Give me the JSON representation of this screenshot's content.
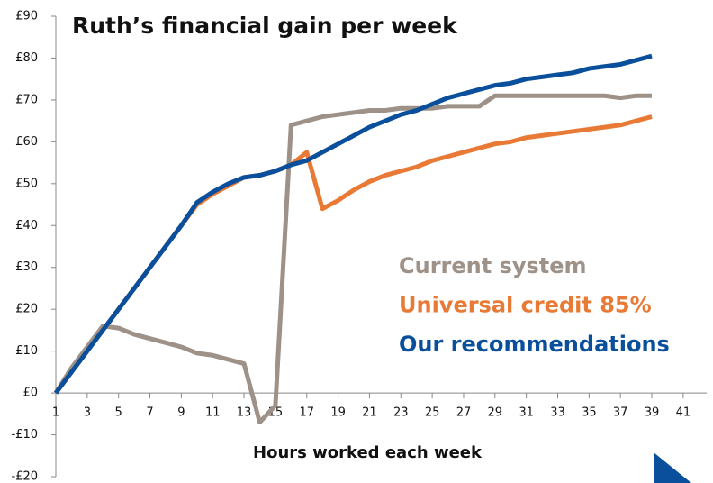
{
  "chart_data": {
    "type": "line",
    "title": "Ruth’s financial gain per week",
    "x_label": "Hours worked each week",
    "x": [
      1,
      2,
      3,
      4,
      5,
      6,
      7,
      8,
      9,
      10,
      11,
      12,
      13,
      14,
      15,
      16,
      17,
      18,
      19,
      20,
      21,
      22,
      23,
      24,
      25,
      26,
      27,
      28,
      29,
      30,
      31,
      32,
      33,
      34,
      35,
      36,
      37,
      38,
      39
    ],
    "series": [
      {
        "name": "Current system",
        "color": "#9d9188",
        "values": [
          0,
          6,
          11,
          16,
          15.5,
          14,
          13,
          12,
          11,
          9.5,
          9,
          8,
          7,
          -7,
          -3,
          64,
          65,
          66,
          66.5,
          67,
          67.5,
          67.5,
          68,
          68,
          68,
          68.5,
          68.5,
          68.5,
          71,
          71,
          71,
          71,
          71,
          71,
          71,
          71,
          70.5,
          71,
          71
        ]
      },
      {
        "name": "Universal credit 85%",
        "color": "#e87a36",
        "values": [
          0,
          5,
          10,
          15,
          20,
          25,
          30,
          35,
          40,
          45,
          47.5,
          49.5,
          51.5,
          52,
          53,
          54.5,
          57.5,
          44,
          46,
          48.5,
          50.5,
          52,
          53,
          54,
          55.5,
          56.5,
          57.5,
          58.5,
          59.5,
          60,
          61,
          61.5,
          62,
          62.5,
          63,
          63.5,
          64,
          65,
          66
        ]
      },
      {
        "name": "Our recommendations",
        "color": "#0a4f9b",
        "values": [
          0,
          5,
          10,
          15,
          20,
          25,
          30,
          35,
          40,
          45.5,
          48,
          50,
          51.5,
          52,
          53,
          54.5,
          55.5,
          57.5,
          59.5,
          61.5,
          63.5,
          65,
          66.5,
          67.5,
          69,
          70.5,
          71.5,
          72.5,
          73.5,
          74,
          75,
          75.5,
          76,
          76.5,
          77.5,
          78,
          78.5,
          79.5,
          80.5
        ]
      }
    ],
    "xlim": [
      1,
      42.5
    ],
    "xticks": [
      1,
      3,
      5,
      7,
      9,
      11,
      13,
      15,
      17,
      19,
      21,
      23,
      25,
      27,
      29,
      31,
      33,
      35,
      37,
      39,
      41
    ],
    "ylim": [
      -20,
      90
    ],
    "yticks": [
      {
        "value": -20,
        "label": "-£20"
      },
      {
        "value": -10,
        "label": "-£10"
      },
      {
        "value": 0,
        "label": "£0"
      },
      {
        "value": 10,
        "label": "£10"
      },
      {
        "value": 20,
        "label": "£20"
      },
      {
        "value": 30,
        "label": "£30"
      },
      {
        "value": 40,
        "label": "£40"
      },
      {
        "value": 50,
        "label": "£50"
      },
      {
        "value": 60,
        "label": "£60"
      },
      {
        "value": 70,
        "label": "£70"
      },
      {
        "value": 80,
        "label": "£80"
      },
      {
        "value": 90,
        "label": "£90"
      }
    ],
    "grid": false
  }
}
